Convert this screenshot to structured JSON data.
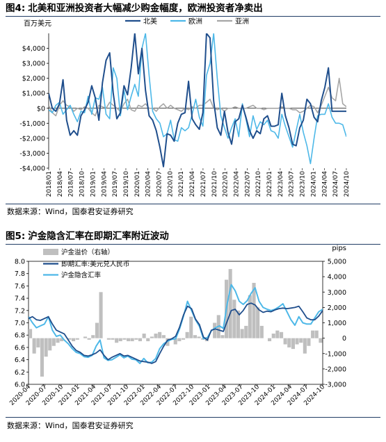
{
  "figure1": {
    "prefix": "图4:",
    "title": "北美和亚洲投资者大幅减少购金幅度，欧洲投资者净卖出",
    "source": "数据来源：Wind，国泰君安证券研究"
  },
  "figure2": {
    "prefix": "图5:",
    "title": "沪金隐含汇率在即期汇率附近波动",
    "source": "数据来源：Wind，国泰君安证券研究"
  },
  "colors": {
    "north_america": "#1f4e8c",
    "europe": "#4db8e8",
    "asia": "#a6a6a6",
    "premium": "#bfbfbf",
    "spot": "#1f4e8c",
    "implied": "#4db8e8",
    "rule": "#1f3b63"
  },
  "chart_data": [
    {
      "type": "line",
      "unit_label": "百万美元",
      "ylim": [
        -4000,
        5000
      ],
      "yticks": [
        -4000,
        -3000,
        -2000,
        -1000,
        0,
        1000,
        2000,
        3000,
        4000
      ],
      "ytick_labels": [
        "-$4,000",
        "-$3,000",
        "-$2,000",
        "-$1,000",
        "$0",
        "$1,000",
        "$2,000",
        "$3,000",
        "$4,000"
      ],
      "x_start": "2018-01",
      "xtick_labels": [
        "2018/01",
        "2018/04",
        "2018/07",
        "2018/10",
        "2019/01",
        "2019/04",
        "2019/07",
        "2019/10",
        "2020/01",
        "2020/04",
        "2020/07",
        "2020/10",
        "2021/01",
        "2021/04",
        "2021/07",
        "2021/10",
        "2022/01",
        "2022/04",
        "2022/07",
        "2022/10",
        "2023/01",
        "2023/04",
        "2023/07",
        "2023/10",
        "2024/01",
        "2024/04",
        "2024/07",
        "2024/10"
      ],
      "legend_position": "top-center",
      "series": [
        {
          "name": "北美",
          "color": "#1f4e8c",
          "values": [
            1000,
            0,
            -200,
            300,
            1900,
            -800,
            -1800,
            -1500,
            -1800,
            -500,
            -100,
            400,
            1500,
            700,
            -800,
            1700,
            3200,
            3700,
            1000,
            -700,
            -300,
            1500,
            900,
            2700,
            5000,
            2300,
            4000,
            1200,
            -500,
            -800,
            -1500,
            -2600,
            -3900,
            -1700,
            -1800,
            -2200,
            -1000,
            -400,
            -300,
            1800,
            -700,
            -1100,
            -1400,
            -300,
            5000,
            4700,
            500,
            -1300,
            -1800,
            -200,
            -1600,
            -2400,
            -900,
            -700,
            200,
            -600,
            -1500,
            -2000,
            -1500,
            -1700,
            -700,
            -500,
            -1200,
            -1200,
            -1100,
            1000,
            -500,
            -1300,
            -2400,
            -2500,
            -1300,
            -800,
            600,
            300,
            -600,
            -900,
            500,
            1400,
            2700,
            -200,
            -200,
            -200,
            -200,
            -200
          ]
        },
        {
          "name": "欧洲",
          "color": "#4db8e8",
          "values": [
            -100,
            -300,
            200,
            400,
            -400,
            -100,
            200,
            -400,
            -900,
            -200,
            -300,
            800,
            -400,
            700,
            600,
            1400,
            -400,
            -700,
            2700,
            2000,
            -500,
            1200,
            -100,
            800,
            1600,
            800,
            4000,
            5000,
            2200,
            -200,
            -700,
            -1000,
            -1900,
            -1700,
            -800,
            -2100,
            -2200,
            -1300,
            -1500,
            -1300,
            -400,
            600,
            -600,
            -1200,
            2200,
            3000,
            5000,
            2000,
            -500,
            -1300,
            -2000,
            -1300,
            -700,
            -1900,
            300,
            -700,
            -1900,
            -500,
            -1400,
            -900,
            -1100,
            -800,
            -1500,
            -1600,
            -2000,
            -400,
            -1200,
            -1900,
            -2600,
            -1500,
            -400,
            -1600,
            -2500,
            -3700,
            -2000,
            -500,
            -400,
            -400,
            300,
            -600,
            -1000,
            -1000,
            -1100,
            -1900
          ]
        },
        {
          "name": "亚洲",
          "color": "#a6a6a6",
          "values": [
            200,
            -300,
            -500,
            200,
            500,
            200,
            100,
            -200,
            0,
            -100,
            100,
            0,
            -300,
            -500,
            200,
            100,
            0,
            400,
            200,
            0,
            -200,
            300,
            600,
            -100,
            -200,
            200,
            100,
            300,
            0,
            0,
            -200,
            100,
            300,
            0,
            200,
            0,
            -100,
            -200,
            0,
            -100,
            100,
            0,
            200,
            200,
            400,
            600,
            0,
            -100,
            0,
            -200,
            0,
            0,
            100,
            0,
            0,
            0,
            100,
            200,
            0,
            0,
            -100,
            0,
            0,
            0,
            0,
            100,
            0,
            0,
            -100,
            -100,
            -300,
            -200,
            0,
            200,
            100,
            -300,
            200,
            800,
            1400,
            700,
            500,
            2000,
            300,
            100
          ]
        }
      ]
    },
    {
      "type": "line",
      "y_left_lim": [
        6.0,
        8.0
      ],
      "y_left_ticks": [
        "6.0",
        "6.2",
        "6.4",
        "6.6",
        "6.8",
        "7.0",
        "7.2",
        "7.4",
        "7.6",
        "7.8",
        "8.0"
      ],
      "y_right_label": "pips",
      "y_right_lim": [
        -3000,
        5000
      ],
      "y_right_ticks": [
        "-3,000",
        "-2,000",
        "-1,000",
        "0",
        "1,000",
        "2,000",
        "3,000",
        "4,000",
        "5,000"
      ],
      "x_start": "2020-04",
      "xtick_labels": [
        "2020-04",
        "2020-07",
        "2020-10",
        "2021-01",
        "2021-04",
        "2021-07",
        "2021-10",
        "2022-01",
        "2022-04",
        "2022-07",
        "2022-10",
        "2023-01",
        "2023-04",
        "2023-07",
        "2023-10",
        "2024-01",
        "2024-04",
        "2024-07",
        "2024-10"
      ],
      "legend_position": "top-left",
      "series": [
        {
          "name": "沪金溢价（右轴）",
          "axis": "right",
          "kind": "bar",
          "color": "#bfbfbf",
          "values": [
            600,
            -1000,
            -600,
            -2500,
            -1200,
            -800,
            -500,
            -300,
            -200,
            0,
            -100,
            -200,
            -100,
            0,
            100,
            -100,
            200,
            1000,
            3000,
            0,
            -100,
            -100,
            -300,
            -200,
            -100,
            -200,
            -200,
            -100,
            -200,
            300,
            -200,
            100,
            300,
            400,
            200,
            -500,
            0,
            -400,
            -200,
            -100,
            400,
            1400,
            200,
            100,
            -100,
            -200,
            0,
            1000,
            1500,
            200,
            3800,
            4500,
            2500,
            1800,
            600,
            800,
            2800,
            3600,
            2000,
            800,
            0,
            -200,
            300,
            500,
            400,
            -400,
            -600,
            -700,
            -400,
            -300,
            -1000,
            -500,
            500,
            500,
            -300
          ]
        },
        {
          "name": "即期汇率:美元兑人民币",
          "axis": "left",
          "color": "#1f4e8c",
          "values": [
            7.07,
            7.1,
            7.05,
            7.04,
            7.07,
            7.1,
            6.98,
            6.88,
            6.85,
            6.82,
            6.72,
            6.62,
            6.55,
            6.52,
            6.47,
            6.46,
            6.48,
            6.51,
            6.56,
            6.47,
            6.4,
            6.44,
            6.47,
            6.5,
            6.46,
            6.47,
            6.44,
            6.41,
            6.38,
            6.37,
            6.36,
            6.34,
            6.37,
            6.5,
            6.62,
            6.72,
            6.74,
            6.78,
            6.93,
            7.13,
            7.27,
            7.23,
            7.06,
            6.97,
            6.77,
            6.72,
            6.88,
            6.9,
            6.88,
            6.86,
            7.03,
            7.2,
            7.22,
            7.13,
            7.2,
            7.3,
            7.32,
            7.29,
            7.21,
            7.17,
            7.19,
            7.18,
            7.21,
            7.23,
            7.24,
            7.23,
            7.24,
            7.25,
            7.27,
            7.18,
            7.08,
            7.05,
            7.05,
            7.11,
            7.2
          ]
        },
        {
          "name": "沪金隐含汇率",
          "axis": "left",
          "color": "#4db8e8",
          "values": [
            7.1,
            7.0,
            6.92,
            6.95,
            6.98,
            7.1,
            6.88,
            6.78,
            6.8,
            6.72,
            6.66,
            6.58,
            6.52,
            6.5,
            6.45,
            6.44,
            6.47,
            6.62,
            6.72,
            6.43,
            6.39,
            6.4,
            6.44,
            6.48,
            6.43,
            6.46,
            6.41,
            6.4,
            6.34,
            6.42,
            6.35,
            6.36,
            6.42,
            6.58,
            6.66,
            6.7,
            6.73,
            6.74,
            6.9,
            7.11,
            7.35,
            7.2,
            7.05,
            6.94,
            6.74,
            6.76,
            6.87,
            6.92,
            6.95,
            6.91,
            7.32,
            7.62,
            7.52,
            7.35,
            7.3,
            7.36,
            7.48,
            7.57,
            7.35,
            7.25,
            7.22,
            7.2,
            7.22,
            7.26,
            7.31,
            7.18,
            7.05,
            6.96,
            7.1,
            7.0,
            6.98,
            6.98,
            7.08,
            7.18,
            7.22
          ]
        }
      ]
    }
  ]
}
